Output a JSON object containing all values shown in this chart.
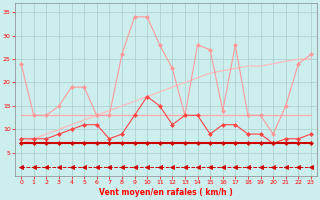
{
  "x": [
    0,
    1,
    2,
    3,
    4,
    5,
    6,
    7,
    8,
    9,
    10,
    11,
    12,
    13,
    14,
    15,
    16,
    17,
    18,
    19,
    20,
    21,
    22,
    23
  ],
  "line_rafales": [
    24,
    13,
    13,
    15,
    19,
    19,
    13,
    13,
    26,
    34,
    34,
    28,
    23,
    13,
    28,
    27,
    14,
    28,
    13,
    13,
    9,
    15,
    24,
    26
  ],
  "line_moyen": [
    8,
    8,
    8,
    9,
    10,
    11,
    11,
    8,
    9,
    13,
    17,
    15,
    11,
    13,
    13,
    9,
    11,
    11,
    9,
    9,
    7,
    8,
    8,
    9
  ],
  "line_flat13": [
    13,
    13,
    13,
    13,
    13,
    13,
    13,
    13,
    13,
    13,
    13,
    13,
    13,
    13,
    13,
    13,
    13,
    13,
    13,
    13,
    13,
    13,
    13,
    13
  ],
  "line_slope": [
    7,
    8,
    9,
    10,
    11,
    12,
    13,
    14,
    15,
    16,
    17,
    18,
    19,
    20,
    21,
    22,
    22.5,
    23,
    23.5,
    23.5,
    24,
    24.5,
    25,
    25
  ],
  "line_flat7": [
    7,
    7,
    7,
    7,
    7,
    7,
    7,
    7,
    7,
    7,
    7,
    7,
    7,
    7,
    7,
    7,
    7,
    7,
    7,
    7,
    7,
    7,
    7,
    7
  ],
  "line_arrows": [
    2,
    2,
    2,
    2,
    2,
    2,
    2,
    2,
    2,
    2,
    2,
    2,
    2,
    2,
    2,
    2,
    2,
    2,
    2,
    2,
    2,
    2,
    2,
    2
  ],
  "background": "#cceeed",
  "grid_color": "#aacccc",
  "col_rafales": "#ff9999",
  "col_moyen": "#ff4444",
  "col_flat13": "#ffaaaa",
  "col_slope": "#ffbbbb",
  "col_flat7": "#cc0000",
  "col_arrows": "#cc0000",
  "xlabel": "Vent moyen/en rafales ( km/h )",
  "ylim": [
    0,
    37
  ],
  "xlim": [
    -0.5,
    23.5
  ],
  "yticks": [
    5,
    10,
    15,
    20,
    25,
    30,
    35
  ],
  "xticks": [
    0,
    1,
    2,
    3,
    4,
    5,
    6,
    7,
    8,
    9,
    10,
    11,
    12,
    13,
    14,
    15,
    16,
    17,
    18,
    19,
    20,
    21,
    22,
    23
  ]
}
